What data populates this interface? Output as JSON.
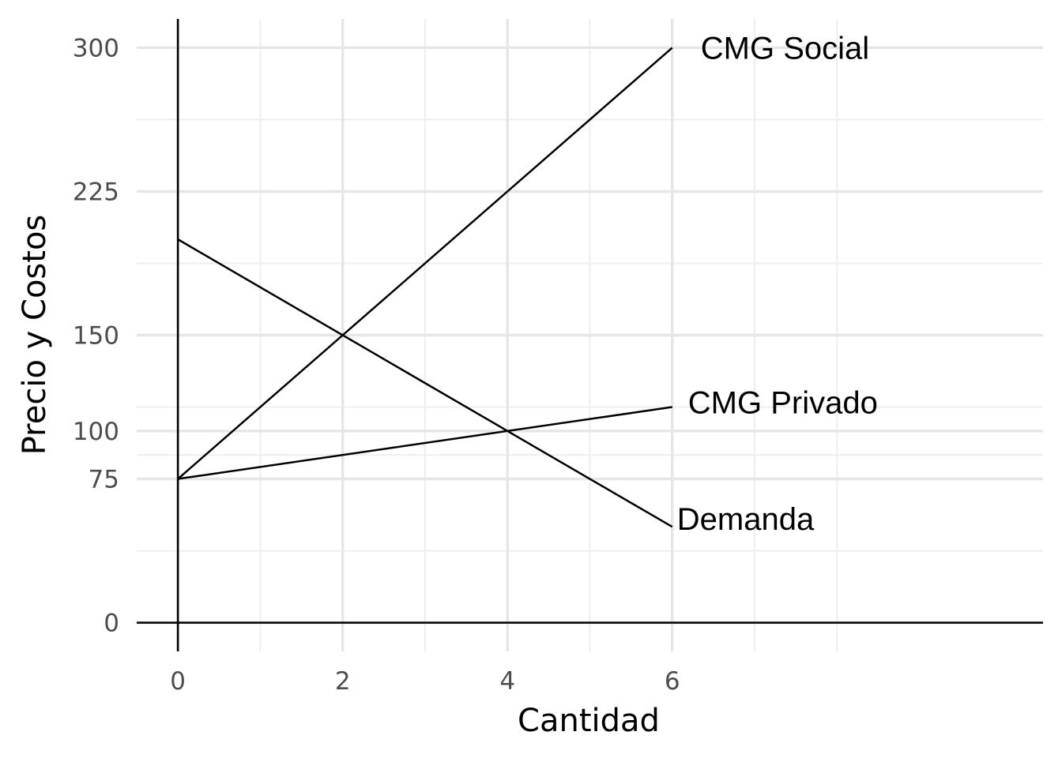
{
  "chart_data": {
    "type": "line",
    "xlabel": "Cantidad",
    "ylabel": "Precio y Costos",
    "xlim": [
      -0.5,
      10.5
    ],
    "ylim": [
      -15,
      315
    ],
    "x_ticks": [
      0,
      2,
      4,
      6
    ],
    "x_minor_ticks": [
      1,
      3,
      5,
      7,
      8
    ],
    "y_ticks": [
      0,
      75,
      100,
      150,
      225,
      300
    ],
    "y_minor_ticks": [
      37.5,
      87.5,
      112.5,
      187.5,
      262.5
    ],
    "grid": true,
    "series": [
      {
        "name": "CMG Social",
        "x": [
          0,
          6
        ],
        "y": [
          75,
          300
        ]
      },
      {
        "name": "CMG Privado",
        "x": [
          0,
          6
        ],
        "y": [
          75,
          112.5
        ]
      },
      {
        "name": "Demanda",
        "x": [
          0,
          6
        ],
        "y": [
          200,
          50
        ]
      }
    ]
  }
}
